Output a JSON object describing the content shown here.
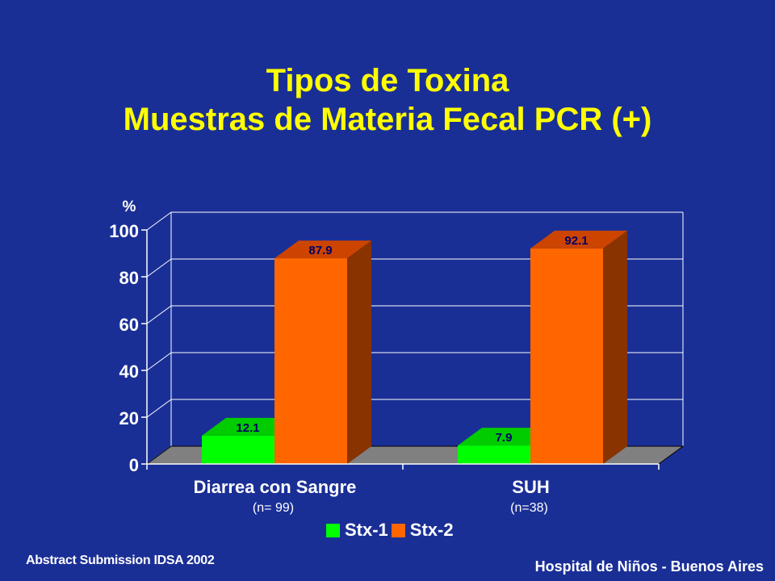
{
  "slide": {
    "title_line1": "Tipos de Toxina",
    "title_line2": "Muestras de Materia Fecal PCR (+)",
    "footer_left": "Abstract Submission IDSA 2002",
    "footer_right": "Hospital de Niños - Buenos Aires"
  },
  "colors": {
    "background": "#1a2f96",
    "title": "#ffff00",
    "stx1_front": "#00ff00",
    "stx1_top": "#00cc00",
    "stx1_side": "#008800",
    "stx2_front": "#ff6600",
    "stx2_top": "#cc4400",
    "stx2_side": "#883300",
    "floor": "#808080"
  },
  "chart_data": {
    "type": "bar",
    "style": "3d-grouped",
    "ylabel": "%",
    "ylim": [
      0,
      100
    ],
    "yticks": [
      0,
      20,
      40,
      60,
      80,
      100
    ],
    "grid": true,
    "categories": [
      "Diarrea con Sangre",
      "SUH"
    ],
    "category_notes": [
      "(n= 99)",
      "(n=38)"
    ],
    "series": [
      {
        "name": "Stx-1",
        "values": [
          12.1,
          7.9
        ],
        "labels": [
          "12.1",
          "7.9"
        ]
      },
      {
        "name": "Stx-2",
        "values": [
          87.9,
          92.1
        ],
        "labels": [
          "87.9",
          "92.1"
        ]
      }
    ],
    "legend_position": "bottom-center"
  }
}
